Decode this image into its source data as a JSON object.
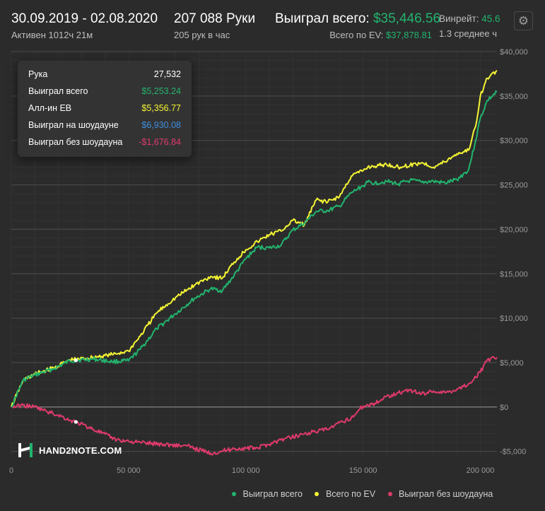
{
  "header": {
    "date_range": "30.09.2019 - 02.08.2020",
    "active_time": "Активен 1012ч 21м",
    "hands": "207 088 Руки",
    "hands_per_hour": "205 рук в час",
    "won_total_label": "Выиграл всего:",
    "won_total_value": "$35,446.56",
    "ev_total_label": "Всего по EV:",
    "ev_total_value": "$37,878.81",
    "winrate_label": "Винрейт:",
    "winrate_value": "45.6",
    "average_text": "1.3 среднее ч",
    "gear_icon": "gear-icon"
  },
  "tooltip": {
    "rows": [
      {
        "label": "Рука",
        "value": "27,532",
        "color": "#ffffff"
      },
      {
        "label": "Выиграл всего",
        "value": "$5,253.24",
        "color": "#22b46e"
      },
      {
        "label": "Алл-ин ЕВ",
        "value": "$5,356.77",
        "color": "#f5f534"
      },
      {
        "label": "Выиграл на шоудауне",
        "value": "$6,930.08",
        "color": "#3d8fe0"
      },
      {
        "label": "Выиграл без шоудауна",
        "value": "-$1,676.84",
        "color": "#e03a6c"
      }
    ]
  },
  "logo": {
    "text": "HAND2NOTE.COM",
    "icon": "h2n-logo-icon"
  },
  "chart_data": {
    "type": "line",
    "xlim": [
      0,
      207088
    ],
    "ylim": [
      -5500,
      40000
    ],
    "x_ticks": [
      0,
      50000,
      100000,
      150000,
      200000
    ],
    "x_tick_labels": [
      "0",
      "50 000",
      "100 000",
      "150 000",
      "200 000"
    ],
    "y_ticks": [
      40000,
      35000,
      30000,
      25000,
      20000,
      15000,
      10000,
      5000,
      0,
      -5000
    ],
    "y_tick_labels": [
      "$40,000",
      "$35,000",
      "$30,000",
      "$25,000",
      "$20,000",
      "$15,000",
      "$10,000",
      "$5,000",
      "$0",
      "-$5,000"
    ],
    "grid": true,
    "legend_position": "bottom-right",
    "series": [
      {
        "name": "Выиграл всего",
        "color": "#22b46e",
        "x": [
          0,
          5000,
          10000,
          18000,
          25000,
          27532,
          35000,
          43000,
          50000,
          55000,
          62000,
          70000,
          78000,
          85000,
          90000,
          95000,
          100000,
          105000,
          110000,
          115000,
          120000,
          125000,
          130000,
          135000,
          140000,
          145000,
          150000,
          152000,
          155000,
          160000,
          165000,
          170000,
          175000,
          180000,
          185000,
          190000,
          195000,
          198000,
          200000,
          203000,
          207088
        ],
        "y": [
          0,
          3000,
          3600,
          4300,
          5200,
          5253,
          5400,
          5100,
          5200,
          6500,
          8800,
          10500,
          12200,
          13300,
          13100,
          14800,
          16700,
          18000,
          17900,
          18200,
          19900,
          20700,
          22000,
          22100,
          22600,
          24100,
          24900,
          25300,
          25200,
          25400,
          25100,
          25500,
          25300,
          25400,
          25200,
          25600,
          26700,
          30000,
          32500,
          34500,
          35447
        ]
      },
      {
        "name": "Всего по EV",
        "color": "#f5f534",
        "x": [
          0,
          5000,
          10000,
          18000,
          25000,
          27532,
          35000,
          43000,
          50000,
          55000,
          62000,
          70000,
          78000,
          85000,
          90000,
          95000,
          100000,
          105000,
          110000,
          115000,
          120000,
          125000,
          130000,
          135000,
          140000,
          145000,
          150000,
          152000,
          155000,
          160000,
          165000,
          170000,
          175000,
          180000,
          185000,
          190000,
          195000,
          198000,
          200000,
          203000,
          207088
        ],
        "y": [
          0,
          3000,
          3700,
          4400,
          5300,
          5357,
          5600,
          5900,
          6300,
          8000,
          10600,
          12300,
          13700,
          14700,
          14500,
          16300,
          17700,
          18600,
          19400,
          19800,
          21000,
          20500,
          23300,
          23100,
          23700,
          26000,
          26600,
          27000,
          27100,
          27300,
          27000,
          27200,
          27500,
          27000,
          27600,
          28500,
          28900,
          31600,
          35000,
          37000,
          37879
        ]
      },
      {
        "name": "Выиграл без шоудауна",
        "color": "#e03a6c",
        "x": [
          0,
          5000,
          10000,
          15000,
          20000,
          25000,
          27532,
          35000,
          45000,
          55000,
          65000,
          75000,
          85000,
          95000,
          105000,
          115000,
          125000,
          135000,
          145000,
          150000,
          155000,
          160000,
          165000,
          170000,
          175000,
          180000,
          185000,
          190000,
          195000,
          200000,
          203000,
          207088
        ],
        "y": [
          0,
          200,
          0,
          -500,
          -900,
          -1500,
          -1677,
          -2500,
          -3700,
          -4000,
          -4200,
          -4400,
          -5200,
          -4700,
          -4600,
          -3700,
          -3000,
          -2500,
          -1200,
          100,
          400,
          1200,
          1600,
          1900,
          1500,
          1800,
          1600,
          2000,
          2600,
          3900,
          5300,
          5600
        ]
      }
    ]
  }
}
